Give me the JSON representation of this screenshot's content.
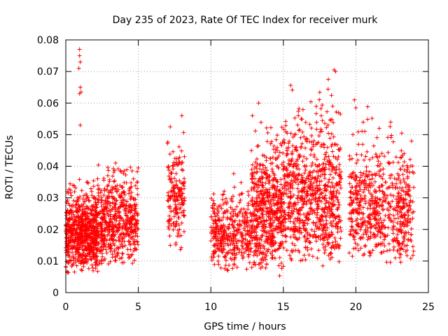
{
  "chart_data": {
    "type": "scatter",
    "title": "Day 235 of 2023, Rate Of TEC Index for receiver murk",
    "xlabel": "GPS time / hours",
    "ylabel": "ROTI / TECUs",
    "xlim": [
      0,
      25
    ],
    "ylim": [
      0,
      0.08
    ],
    "xticks": [
      0,
      5,
      10,
      15,
      20,
      25
    ],
    "xtick_labels": [
      "0",
      "5",
      "10",
      "15",
      "20",
      "25"
    ],
    "yticks": [
      0,
      0.01,
      0.02,
      0.03,
      0.04,
      0.05,
      0.06,
      0.07,
      0.08
    ],
    "ytick_labels": [
      "0",
      "0.01",
      "0.02",
      "0.03",
      "0.04",
      "0.05",
      "0.06",
      "0.07",
      "0.08"
    ],
    "grid": true,
    "marker": "+",
    "marker_color": "#ff0000",
    "point_clusters": [
      {
        "x_range": [
          0.0,
          2.2
        ],
        "y_range": [
          0.006,
          0.04
        ],
        "count": 700
      },
      {
        "x_range": [
          2.2,
          5.0
        ],
        "y_range": [
          0.008,
          0.047
        ],
        "count": 550
      },
      {
        "x_range": [
          7.0,
          8.2
        ],
        "y_range": [
          0.013,
          0.056
        ],
        "count": 180
      },
      {
        "x_range": [
          10.0,
          12.8
        ],
        "y_range": [
          0.006,
          0.039
        ],
        "count": 380
      },
      {
        "x_range": [
          12.8,
          15.0
        ],
        "y_range": [
          0.005,
          0.06
        ],
        "count": 550
      },
      {
        "x_range": [
          15.0,
          19.0
        ],
        "y_range": [
          0.007,
          0.07
        ],
        "count": 800
      },
      {
        "x_range": [
          19.5,
          24.0
        ],
        "y_range": [
          0.008,
          0.061
        ],
        "count": 650
      }
    ],
    "notable_points": [
      {
        "x": 0.95,
        "y": 0.077
      },
      {
        "x": 0.95,
        "y": 0.075
      },
      {
        "x": 1.0,
        "y": 0.073
      },
      {
        "x": 0.9,
        "y": 0.071
      },
      {
        "x": 1.0,
        "y": 0.065
      },
      {
        "x": 0.95,
        "y": 0.063
      },
      {
        "x": 1.05,
        "y": 0.0635
      },
      {
        "x": 1.0,
        "y": 0.053
      },
      {
        "x": 8.0,
        "y": 0.056
      },
      {
        "x": 7.2,
        "y": 0.0525
      },
      {
        "x": 13.3,
        "y": 0.06
      },
      {
        "x": 18.1,
        "y": 0.0675
      },
      {
        "x": 18.5,
        "y": 0.0705
      },
      {
        "x": 18.6,
        "y": 0.07
      },
      {
        "x": 18.4,
        "y": 0.059
      },
      {
        "x": 19.9,
        "y": 0.061
      },
      {
        "x": 20.0,
        "y": 0.0585
      },
      {
        "x": 22.4,
        "y": 0.054
      },
      {
        "x": 0.6,
        "y": 0.0065
      }
    ]
  }
}
